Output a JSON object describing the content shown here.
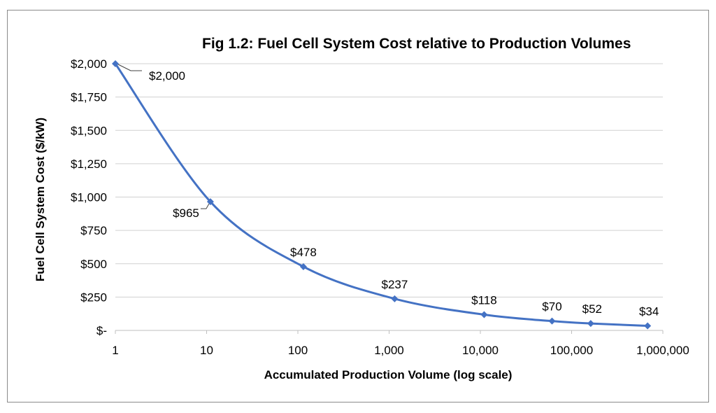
{
  "chart_data": {
    "type": "line",
    "title": "Fig 1.2: Fuel Cell System Cost relative to Production Volumes",
    "xlabel": "Accumulated Production Volume (log scale)",
    "ylabel": "Fuel Cell System Cost ($/kW)",
    "x_scale": "log",
    "xlim": [
      1,
      1000000
    ],
    "ylim": [
      0,
      2000
    ],
    "x_tick_values": [
      1,
      10,
      100,
      1000,
      10000,
      100000,
      1000000
    ],
    "x_tick_labels": [
      "1",
      "10",
      "100",
      "1,000",
      "10,000",
      "100,000",
      "1,000,000"
    ],
    "y_tick_values": [
      0,
      250,
      500,
      750,
      1000,
      1250,
      1500,
      1750,
      2000
    ],
    "y_tick_labels": [
      "$-",
      "$250",
      "$500",
      "$750",
      "$1,000",
      "$1,250",
      "$1,500",
      "$1,750",
      "$2,000"
    ],
    "grid": "horizontal",
    "legend": "none",
    "series": [
      {
        "color": "#4472c4",
        "marker": "diamond",
        "x": [
          1,
          11,
          115,
          1150,
          11000,
          61000,
          162000,
          680000
        ],
        "y": [
          2000,
          965,
          478,
          237,
          118,
          70,
          52,
          34
        ],
        "labels": [
          "$2,000",
          "$965",
          "$478",
          "$237",
          "$118",
          "$70",
          "$52",
          "$34"
        ]
      }
    ]
  }
}
